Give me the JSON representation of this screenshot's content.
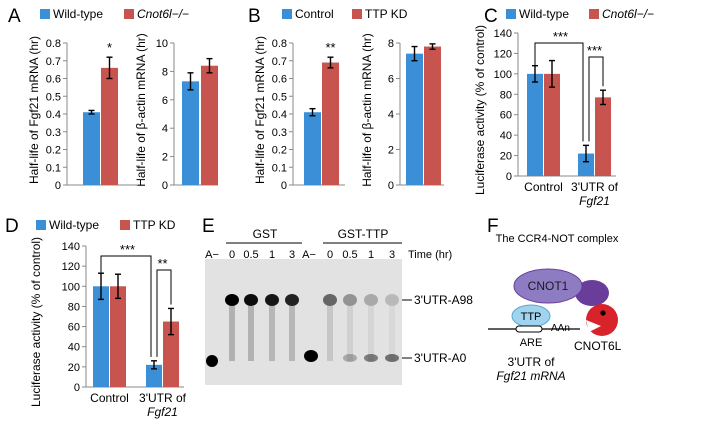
{
  "colors": {
    "blue": "#3b8fd6",
    "red": "#c8544f",
    "gel_bg": "#e2e2e2",
    "ccr4": "#6a3d9a",
    "cnot1": "#8e7cc3",
    "ttp": "#9fd3ee",
    "cnot6l": "#d8232a"
  },
  "chart_data": [
    {
      "panel": "A",
      "type": "bar",
      "legend": [
        {
          "name": "Wild-type",
          "color": "blue"
        },
        {
          "name": "Cnot6l−/−",
          "color": "red",
          "italic": true
        }
      ],
      "subplots": [
        {
          "ylabel": "Half-life of Fgf21 mRNA (hr)",
          "ylim": [
            0,
            0.8
          ],
          "ticks": [
            0,
            0.1,
            0.2,
            0.3,
            0.4,
            0.5,
            0.6,
            0.7,
            0.8
          ],
          "series": [
            {
              "name": "Wild-type",
              "values": [
                0.41
              ],
              "errors": [
                0.01
              ]
            },
            {
              "name": "Cnot6l−/−",
              "values": [
                0.66
              ],
              "errors": [
                0.06
              ]
            }
          ],
          "annotations": [
            "*"
          ]
        },
        {
          "ylabel": "Half-life of β-actin mRNA (hr)",
          "ylim": [
            0,
            10
          ],
          "ticks": [
            0,
            2,
            4,
            6,
            8,
            10
          ],
          "series": [
            {
              "name": "Wild-type",
              "values": [
                7.3
              ],
              "errors": [
                0.6
              ]
            },
            {
              "name": "Cnot6l−/−",
              "values": [
                8.4
              ],
              "errors": [
                0.5
              ]
            }
          ]
        }
      ]
    },
    {
      "panel": "B",
      "type": "bar",
      "legend": [
        {
          "name": "Control",
          "color": "blue"
        },
        {
          "name": "TTP KD",
          "color": "red"
        }
      ],
      "subplots": [
        {
          "ylabel": "Half-life of Fgf21 mRNA (hr)",
          "ylim": [
            0,
            0.8
          ],
          "ticks": [
            0,
            0.1,
            0.2,
            0.3,
            0.4,
            0.5,
            0.6,
            0.7,
            0.8
          ],
          "series": [
            {
              "name": "Control",
              "values": [
                0.41
              ],
              "errors": [
                0.02
              ]
            },
            {
              "name": "TTP KD",
              "values": [
                0.69
              ],
              "errors": [
                0.03
              ]
            }
          ],
          "annotations": [
            "**"
          ]
        },
        {
          "ylabel": "Half-life of β-actin mRNA (hr)",
          "ylim": [
            0,
            8
          ],
          "ticks": [
            0,
            2,
            4,
            6,
            8
          ],
          "series": [
            {
              "name": "Control",
              "values": [
                7.4
              ],
              "errors": [
                0.4
              ]
            },
            {
              "name": "TTP KD",
              "values": [
                7.8
              ],
              "errors": [
                0.15
              ]
            }
          ]
        }
      ]
    },
    {
      "panel": "C",
      "type": "bar",
      "legend": [
        {
          "name": "Wild-type",
          "color": "blue"
        },
        {
          "name": "Cnot6l−/−",
          "color": "red",
          "italic": true
        }
      ],
      "ylabel": "Luciferase activity (% of control)",
      "ylim": [
        0,
        140
      ],
      "ticks": [
        0,
        20,
        40,
        60,
        80,
        100,
        120,
        140
      ],
      "categories": [
        "Control",
        "3'UTR of Fgf21"
      ],
      "series": [
        {
          "name": "Wild-type",
          "values": [
            100,
            22
          ],
          "errors": [
            8,
            8
          ]
        },
        {
          "name": "Cnot6l−/−",
          "values": [
            100,
            77
          ],
          "errors": [
            13,
            7
          ]
        }
      ],
      "annotations": [
        "***",
        "***"
      ]
    },
    {
      "panel": "D",
      "type": "bar",
      "legend": [
        {
          "name": "Wild-type",
          "color": "blue"
        },
        {
          "name": "TTP KD",
          "color": "red"
        }
      ],
      "ylabel": "Luciferase activity (% of control)",
      "ylim": [
        0,
        140
      ],
      "ticks": [
        0,
        20,
        40,
        60,
        80,
        100,
        120,
        140
      ],
      "categories": [
        "Control",
        "3'UTR of Fgf21"
      ],
      "series": [
        {
          "name": "Wild-type",
          "values": [
            100,
            22
          ],
          "errors": [
            13,
            4
          ]
        },
        {
          "name": "TTP KD",
          "values": [
            100,
            65
          ],
          "errors": [
            12,
            13
          ]
        }
      ],
      "annotations": [
        "***",
        "**"
      ]
    }
  ],
  "gel": {
    "panel": "E",
    "groups": [
      "GST",
      "GST-TTP"
    ],
    "marker": "A−",
    "lanes": [
      "0",
      "0.5",
      "1",
      "3",
      "0",
      "0.5",
      "1",
      "3"
    ],
    "time_label": "Time (hr)",
    "bands": [
      "3'UTR-A98",
      "3'UTR-A0"
    ]
  },
  "diagram": {
    "panel": "F",
    "title": "The CCR4-NOT complex",
    "proteins": [
      "CNOT1",
      "TTP",
      "CNOT6L"
    ],
    "ARE": "ARE",
    "polyA": "AAn",
    "caption1": "3'UTR of",
    "caption2": "Fgf21 mRNA"
  }
}
